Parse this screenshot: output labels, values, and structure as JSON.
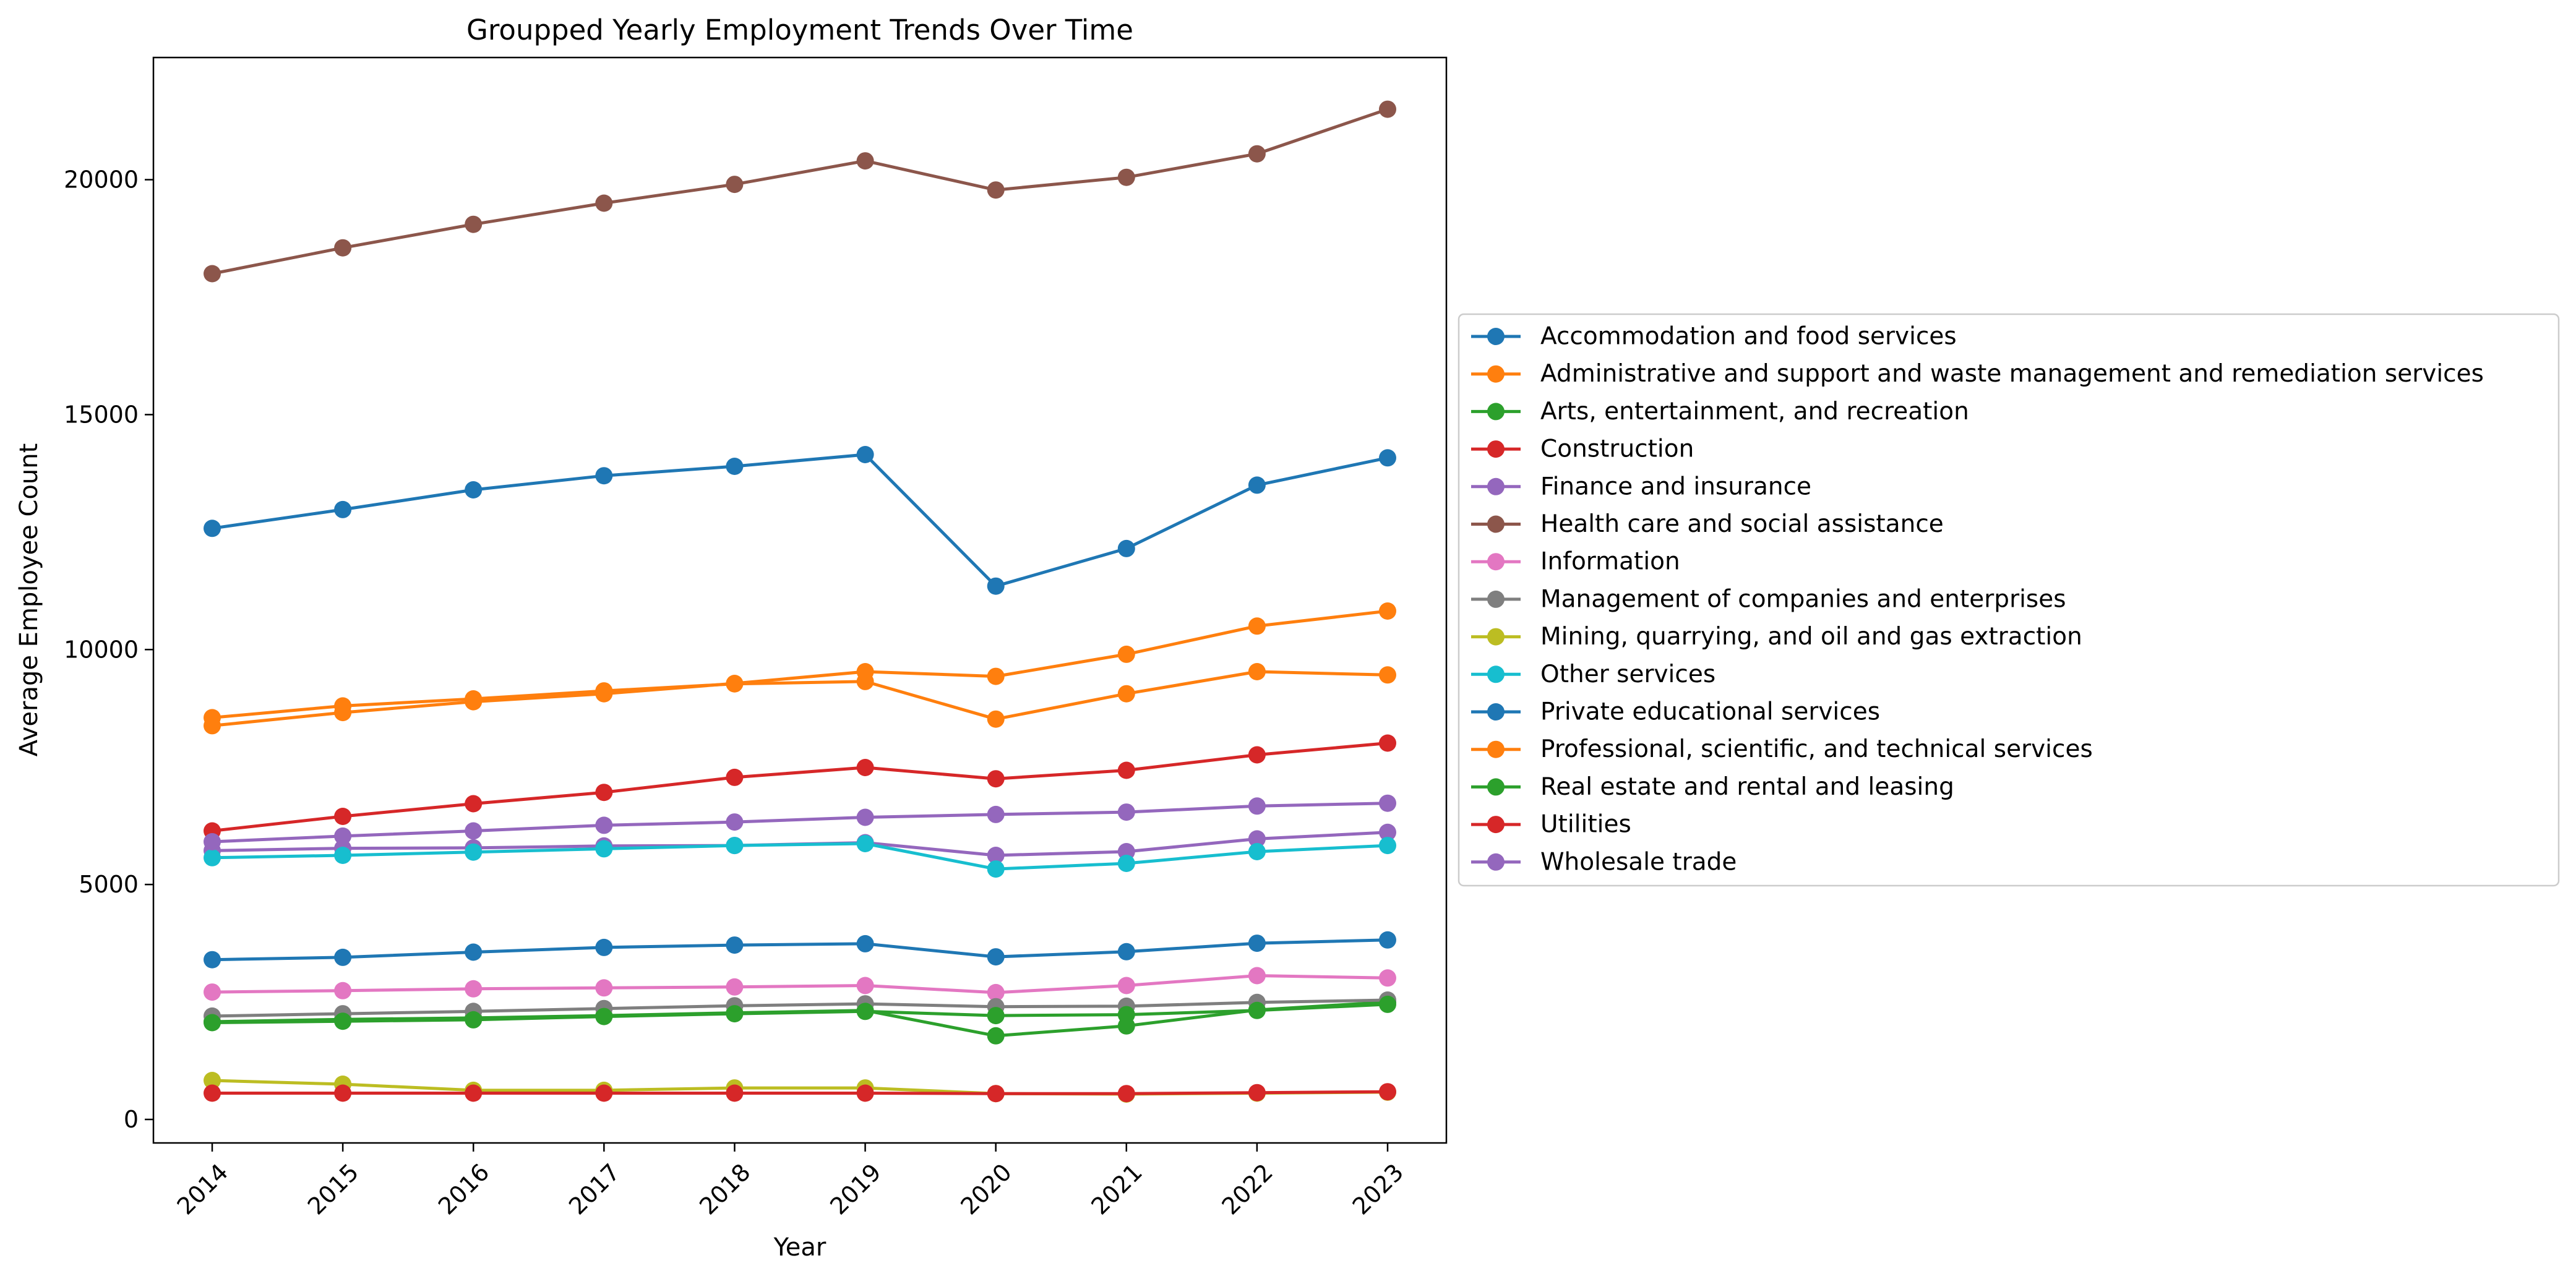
{
  "chart_data": {
    "type": "line",
    "title": "Groupped Yearly Employment Trends Over Time",
    "xlabel": "Year",
    "ylabel": "Average Employee Count",
    "x": [
      2014,
      2015,
      2016,
      2017,
      2018,
      2019,
      2020,
      2021,
      2022,
      2023
    ],
    "x_tick_labels": [
      "2014",
      "2015",
      "2016",
      "2017",
      "2018",
      "2019",
      "2020",
      "2021",
      "2022",
      "2023"
    ],
    "y_ticks": [
      0,
      5000,
      10000,
      15000,
      20000
    ],
    "y_tick_labels": [
      "0",
      "5000",
      "10000",
      "15000",
      "20000"
    ],
    "ylim": [
      -500,
      22600
    ],
    "xlim": [
      2013.55,
      2023.45
    ],
    "grid": false,
    "legend_position": "right, outside plot area",
    "marker": "circle",
    "series": [
      {
        "name": "Accommodation and food services",
        "color": "#1f77b4",
        "values": [
          12580,
          12980,
          13400,
          13700,
          13900,
          14150,
          11350,
          12150,
          13500,
          14080
        ]
      },
      {
        "name": "Administrative and support and waste management and remediation services",
        "color": "#ff7f0e",
        "values": [
          8550,
          8800,
          8950,
          9120,
          9270,
          9320,
          8520,
          9060,
          9530,
          9460
        ]
      },
      {
        "name": "Arts, entertainment, and recreation",
        "color": "#2ca02c",
        "values": [
          2080,
          2130,
          2160,
          2210,
          2270,
          2320,
          1780,
          1990,
          2330,
          2500
        ]
      },
      {
        "name": "Construction",
        "color": "#d62728",
        "values": [
          6140,
          6450,
          6720,
          6960,
          7280,
          7490,
          7250,
          7430,
          7760,
          8010
        ]
      },
      {
        "name": "Finance and insurance",
        "color": "#9467bd",
        "values": [
          5720,
          5770,
          5780,
          5820,
          5830,
          5890,
          5620,
          5700,
          5970,
          6110
        ]
      },
      {
        "name": "Health care and social assistance",
        "color": "#8c564b",
        "values": [
          18000,
          18550,
          19050,
          19500,
          19900,
          20400,
          19780,
          20050,
          20550,
          21500
        ]
      },
      {
        "name": "Information",
        "color": "#e377c2",
        "values": [
          2710,
          2740,
          2780,
          2800,
          2820,
          2850,
          2700,
          2850,
          3060,
          3010
        ]
      },
      {
        "name": "Management of companies and enterprises",
        "color": "#7f7f7f",
        "values": [
          2200,
          2250,
          2300,
          2360,
          2420,
          2460,
          2400,
          2410,
          2490,
          2540
        ]
      },
      {
        "name": "Mining, quarrying, and oil and gas extraction",
        "color": "#bcbd22",
        "values": [
          830,
          750,
          620,
          620,
          670,
          670,
          550,
          540,
          560,
          580
        ]
      },
      {
        "name": "Other services",
        "color": "#17becf",
        "values": [
          5570,
          5620,
          5690,
          5760,
          5830,
          5870,
          5330,
          5450,
          5700,
          5830
        ]
      },
      {
        "name": "Private educational services",
        "color": "#1f77b4",
        "values": [
          3400,
          3450,
          3560,
          3660,
          3710,
          3740,
          3460,
          3570,
          3750,
          3820
        ]
      },
      {
        "name": "Professional, scientific, and technical services",
        "color": "#ff7f0e",
        "values": [
          8380,
          8660,
          8890,
          9060,
          9280,
          9530,
          9430,
          9900,
          10500,
          10820
        ]
      },
      {
        "name": "Real estate and rental and leasing",
        "color": "#2ca02c",
        "values": [
          2060,
          2090,
          2120,
          2190,
          2250,
          2300,
          2210,
          2230,
          2320,
          2450
        ]
      },
      {
        "name": "Utilities",
        "color": "#d62728",
        "values": [
          560,
          560,
          560,
          560,
          560,
          560,
          550,
          550,
          570,
          590
        ]
      },
      {
        "name": "Wholesale trade",
        "color": "#9467bd",
        "values": [
          5910,
          6030,
          6140,
          6260,
          6330,
          6430,
          6490,
          6540,
          6670,
          6730
        ]
      }
    ]
  }
}
